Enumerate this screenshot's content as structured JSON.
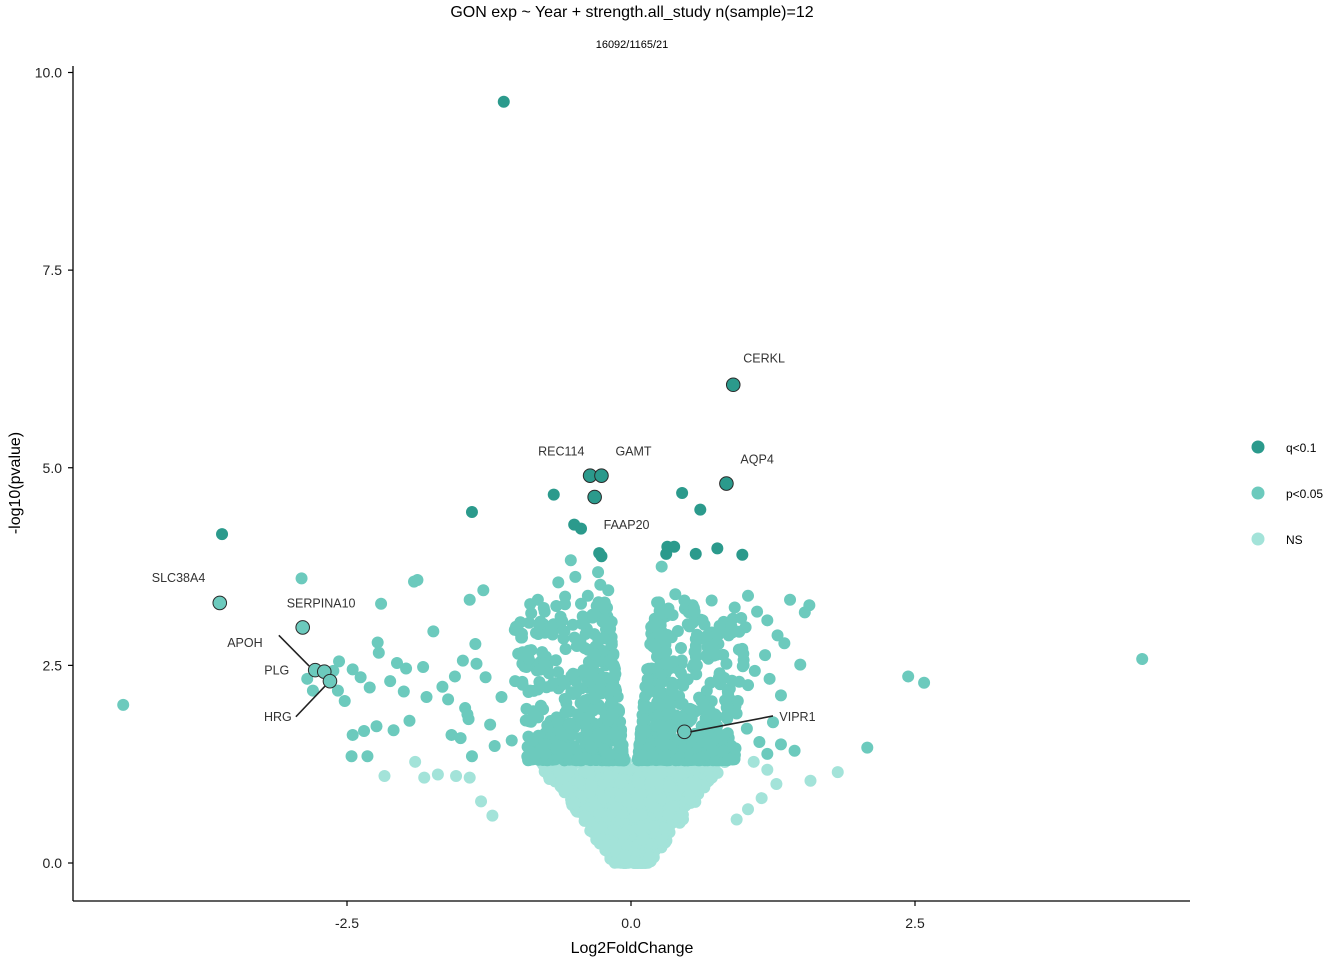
{
  "chart_data": {
    "type": "scatter",
    "title": "GON exp ~ Year + strength.all_study n(sample)=12",
    "subtitle": "16092/1165/21",
    "xlabel": "Log2FoldChange",
    "ylabel": "-log10(pvalue)",
    "xlim": [
      -4.95,
      4.95
    ],
    "ylim": [
      -0.45,
      10.1
    ],
    "x_ticks": [
      -2.5,
      0.0,
      2.5
    ],
    "x_tick_labels": [
      "-2.5",
      "0.0",
      "2.5"
    ],
    "y_ticks": [
      0.0,
      2.5,
      5.0,
      7.5,
      10.0
    ],
    "y_tick_labels": [
      "0.0",
      "2.5",
      "5.0",
      "7.5",
      "10.0"
    ],
    "grid": false,
    "legend_position": "right",
    "series": [
      {
        "name": "q<0.1",
        "color": "#2b9a8c",
        "points": [
          {
            "x": -1.12,
            "y": 9.63
          },
          {
            "x": 0.9,
            "y": 6.05,
            "label": "CERKL"
          },
          {
            "x": -0.36,
            "y": 4.9,
            "label": "REC114"
          },
          {
            "x": -0.26,
            "y": 4.9,
            "label": "GAMT"
          },
          {
            "x": 0.84,
            "y": 4.8,
            "label": "AQP4"
          },
          {
            "x": -0.32,
            "y": 4.63,
            "label": "FAAP20"
          },
          {
            "x": -0.68,
            "y": 4.66
          },
          {
            "x": 0.45,
            "y": 4.68
          },
          {
            "x": 0.61,
            "y": 4.47
          },
          {
            "x": -1.4,
            "y": 4.44
          },
          {
            "x": -0.5,
            "y": 4.28
          },
          {
            "x": -0.44,
            "y": 4.23
          },
          {
            "x": -3.6,
            "y": 4.16
          },
          {
            "x": 0.32,
            "y": 4.0
          },
          {
            "x": 0.38,
            "y": 4.0
          },
          {
            "x": 0.76,
            "y": 3.98
          },
          {
            "x": -0.28,
            "y": 3.92
          },
          {
            "x": -0.26,
            "y": 3.88
          },
          {
            "x": 0.57,
            "y": 3.91
          },
          {
            "x": 0.98,
            "y": 3.9
          },
          {
            "x": 0.31,
            "y": 3.91
          }
        ]
      },
      {
        "name": "p<0.05",
        "color": "#6ccabd",
        "highlight": [
          {
            "x": -3.62,
            "y": 3.29,
            "label": "SLC38A4"
          },
          {
            "x": -2.89,
            "y": 2.98,
            "label": "SERPINA10"
          },
          {
            "x": -2.78,
            "y": 2.44,
            "label": "APOH"
          },
          {
            "x": -2.7,
            "y": 2.42,
            "label": "PLG"
          },
          {
            "x": -2.65,
            "y": 2.3,
            "label": "HRG"
          },
          {
            "x": 0.47,
            "y": 1.66,
            "label": "VIPR1"
          }
        ],
        "points": [
          {
            "x": -4.47,
            "y": 2.0
          },
          {
            "x": -2.9,
            "y": 3.6
          },
          {
            "x": -1.88,
            "y": 3.58
          },
          {
            "x": -1.91,
            "y": 3.56
          },
          {
            "x": -2.2,
            "y": 3.28
          },
          {
            "x": -1.74,
            "y": 2.93
          },
          {
            "x": -1.3,
            "y": 3.45
          },
          {
            "x": -1.42,
            "y": 3.33
          },
          {
            "x": -1.37,
            "y": 2.77
          },
          {
            "x": -2.23,
            "y": 2.79
          },
          {
            "x": -2.22,
            "y": 2.66
          },
          {
            "x": -2.06,
            "y": 2.53
          },
          {
            "x": -1.98,
            "y": 2.46
          },
          {
            "x": -1.83,
            "y": 2.48
          },
          {
            "x": -2.57,
            "y": 2.55
          },
          {
            "x": -2.45,
            "y": 2.45
          },
          {
            "x": -2.38,
            "y": 2.35
          },
          {
            "x": -2.3,
            "y": 2.22
          },
          {
            "x": -2.12,
            "y": 2.3
          },
          {
            "x": -2.0,
            "y": 2.17
          },
          {
            "x": -1.8,
            "y": 2.1
          },
          {
            "x": -1.66,
            "y": 2.23
          },
          {
            "x": -1.61,
            "y": 2.07
          },
          {
            "x": -1.55,
            "y": 2.36
          },
          {
            "x": -1.48,
            "y": 2.56
          },
          {
            "x": -1.46,
            "y": 1.96
          },
          {
            "x": -1.43,
            "y": 1.82
          },
          {
            "x": -1.58,
            "y": 1.62
          },
          {
            "x": -1.95,
            "y": 1.8
          },
          {
            "x": -2.09,
            "y": 1.68
          },
          {
            "x": -2.24,
            "y": 1.73
          },
          {
            "x": -2.35,
            "y": 1.67
          },
          {
            "x": -2.45,
            "y": 1.62
          },
          {
            "x": -2.52,
            "y": 2.05
          },
          {
            "x": -2.58,
            "y": 2.18
          },
          {
            "x": -2.62,
            "y": 2.43
          },
          {
            "x": -2.32,
            "y": 1.35
          },
          {
            "x": -2.46,
            "y": 1.35
          },
          {
            "x": -2.85,
            "y": 2.33
          },
          {
            "x": -2.8,
            "y": 2.18
          },
          {
            "x": -1.4,
            "y": 1.35
          },
          {
            "x": -1.2,
            "y": 1.48
          },
          {
            "x": -1.05,
            "y": 1.55
          },
          {
            "x": -0.96,
            "y": 2.9
          },
          {
            "x": -0.82,
            "y": 3.33
          },
          {
            "x": -0.76,
            "y": 3.18
          },
          {
            "x": -0.7,
            "y": 2.98
          },
          {
            "x": -0.64,
            "y": 3.55
          },
          {
            "x": -0.58,
            "y": 3.37
          },
          {
            "x": -0.53,
            "y": 3.83
          },
          {
            "x": -0.49,
            "y": 3.62
          },
          {
            "x": -0.44,
            "y": 3.28
          },
          {
            "x": -0.38,
            "y": 3.38
          },
          {
            "x": -0.34,
            "y": 3.14
          },
          {
            "x": -0.29,
            "y": 3.68
          },
          {
            "x": -0.27,
            "y": 3.52
          },
          {
            "x": -0.23,
            "y": 3.22
          },
          {
            "x": -0.2,
            "y": 3.45
          },
          {
            "x": -0.17,
            "y": 3.05
          },
          {
            "x": -0.9,
            "y": 2.58
          },
          {
            "x": -1.02,
            "y": 2.3
          },
          {
            "x": -1.14,
            "y": 2.1
          },
          {
            "x": -1.24,
            "y": 1.75
          },
          {
            "x": -0.86,
            "y": 1.92
          },
          {
            "x": -1.28,
            "y": 2.35
          },
          {
            "x": -1.36,
            "y": 2.52
          },
          {
            "x": -1.44,
            "y": 1.88
          },
          {
            "x": -1.5,
            "y": 1.58
          },
          {
            "x": 0.27,
            "y": 3.75
          },
          {
            "x": 0.33,
            "y": 3.22
          },
          {
            "x": 0.39,
            "y": 3.4
          },
          {
            "x": 0.47,
            "y": 3.32
          },
          {
            "x": 0.56,
            "y": 3.18
          },
          {
            "x": 0.63,
            "y": 3.07
          },
          {
            "x": 0.71,
            "y": 3.32
          },
          {
            "x": 0.78,
            "y": 3.0
          },
          {
            "x": 0.86,
            "y": 2.88
          },
          {
            "x": 0.95,
            "y": 2.7
          },
          {
            "x": 1.03,
            "y": 3.38
          },
          {
            "x": 1.11,
            "y": 3.18
          },
          {
            "x": 1.2,
            "y": 3.07
          },
          {
            "x": 1.29,
            "y": 2.88
          },
          {
            "x": 1.35,
            "y": 2.78
          },
          {
            "x": 1.4,
            "y": 3.33
          },
          {
            "x": 1.53,
            "y": 3.17
          },
          {
            "x": 1.57,
            "y": 3.26
          },
          {
            "x": 0.97,
            "y": 3.1
          },
          {
            "x": 1.09,
            "y": 2.43
          },
          {
            "x": 1.22,
            "y": 2.33
          },
          {
            "x": 1.32,
            "y": 2.12
          },
          {
            "x": 1.18,
            "y": 2.63
          },
          {
            "x": 1.49,
            "y": 2.51
          },
          {
            "x": 1.03,
            "y": 2.25
          },
          {
            "x": 0.94,
            "y": 2.05
          },
          {
            "x": 1.02,
            "y": 1.7
          },
          {
            "x": 1.13,
            "y": 1.53
          },
          {
            "x": 1.2,
            "y": 1.38
          },
          {
            "x": 1.32,
            "y": 1.5
          },
          {
            "x": 1.44,
            "y": 1.42
          },
          {
            "x": 1.25,
            "y": 1.78
          },
          {
            "x": 0.84,
            "y": 2.52
          },
          {
            "x": 0.7,
            "y": 2.28
          },
          {
            "x": 0.58,
            "y": 2.5
          },
          {
            "x": 2.08,
            "y": 1.46
          },
          {
            "x": 2.44,
            "y": 2.36
          },
          {
            "x": 2.58,
            "y": 2.28
          },
          {
            "x": 4.5,
            "y": 2.58
          },
          {
            "x": 0.24,
            "y": 2.9
          },
          {
            "x": 0.3,
            "y": 2.52
          },
          {
            "x": 0.36,
            "y": 2.18
          },
          {
            "x": 0.44,
            "y": 2.72
          },
          {
            "x": 0.52,
            "y": 1.95
          },
          {
            "x": 0.62,
            "y": 2.05
          },
          {
            "x": 0.74,
            "y": 1.88
          },
          {
            "x": 0.82,
            "y": 1.62
          },
          {
            "x": 0.92,
            "y": 1.45
          },
          {
            "x": 0.66,
            "y": 2.62
          },
          {
            "x": 0.78,
            "y": 2.4
          },
          {
            "x": 0.5,
            "y": 3.02
          }
        ]
      },
      {
        "name": "NS",
        "color": "#a3e3d9",
        "points": [
          {
            "x": -2.17,
            "y": 1.1
          },
          {
            "x": -1.9,
            "y": 1.28
          },
          {
            "x": -1.82,
            "y": 1.08
          },
          {
            "x": -1.7,
            "y": 1.12
          },
          {
            "x": -1.54,
            "y": 1.1
          },
          {
            "x": -1.42,
            "y": 1.08
          },
          {
            "x": 1.08,
            "y": 1.28
          },
          {
            "x": 1.2,
            "y": 1.18
          },
          {
            "x": 1.58,
            "y": 1.04
          },
          {
            "x": 1.82,
            "y": 1.15
          },
          {
            "x": 1.28,
            "y": 1.0
          },
          {
            "x": 1.15,
            "y": 0.82
          },
          {
            "x": 1.03,
            "y": 0.68
          },
          {
            "x": 0.93,
            "y": 0.55
          },
          {
            "x": -1.32,
            "y": 0.78
          },
          {
            "x": -1.22,
            "y": 0.6
          }
        ]
      }
    ]
  }
}
